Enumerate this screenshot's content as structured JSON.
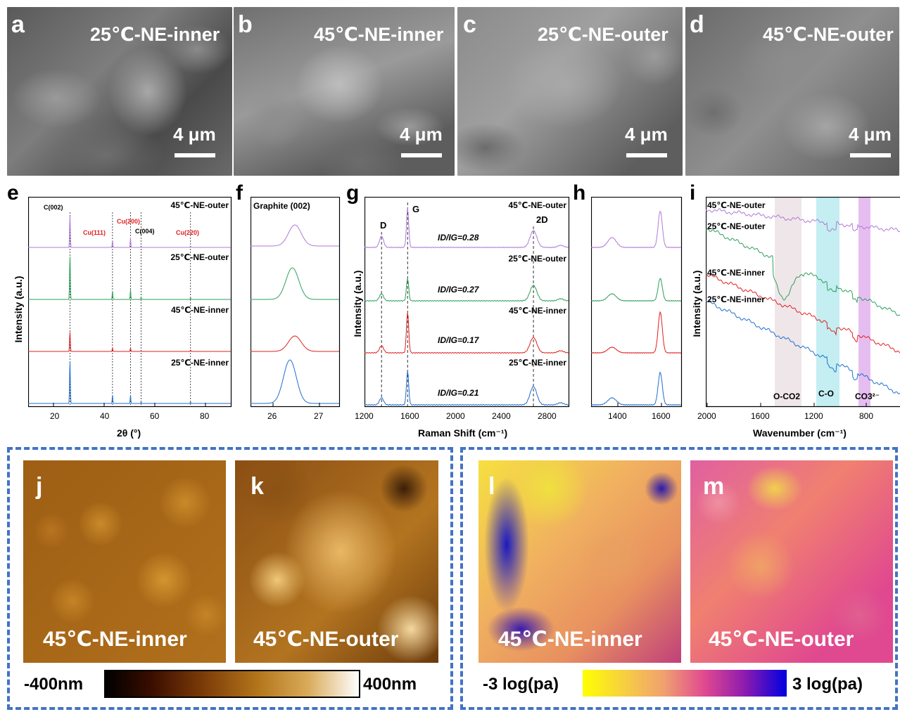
{
  "sem_panels": [
    {
      "letter": "a",
      "title": "25℃-NE-inner",
      "scale": "4 μm"
    },
    {
      "letter": "b",
      "title": "45℃-NE-inner",
      "scale": "4 μm"
    },
    {
      "letter": "c",
      "title": "25℃-NE-outer",
      "scale": "4 μm"
    },
    {
      "letter": "d",
      "title": "45℃-NE-outer",
      "scale": "4 μm"
    }
  ],
  "plots": {
    "e": {
      "letter": "e",
      "ylabel": "Intensity (a.u.)",
      "xlabel": "2θ (°)",
      "xticks": [
        "20",
        "40",
        "60",
        "80"
      ],
      "peak_labels": [
        {
          "text": "C(002)",
          "color": "#000000"
        },
        {
          "text": "Cu(111)",
          "color": "#e02020"
        },
        {
          "text": "Cu(200)",
          "color": "#e02020"
        },
        {
          "text": "C(004)",
          "color": "#000000"
        },
        {
          "text": "Cu(220)",
          "color": "#e02020"
        }
      ],
      "series_labels": [
        "45℃-NE-outer",
        "25℃-NE-outer",
        "45℃-NE-inner",
        "25℃-NE-inner"
      ]
    },
    "f": {
      "letter": "f",
      "title": "Graphite (002)",
      "xticks": [
        "26",
        "27"
      ]
    },
    "g": {
      "letter": "g",
      "ylabel": "Intensity (a.u.)",
      "xlabel": "Raman Shift (cm⁻¹)",
      "xticks": [
        "1200",
        "1600",
        "2000",
        "2400",
        "2800"
      ],
      "band_labels": [
        "D",
        "G",
        "2D"
      ],
      "series_labels": [
        "45℃-NE-outer",
        "25℃-NE-outer",
        "45℃-NE-inner",
        "25℃-NE-inner"
      ],
      "ratios": [
        "ID/IG=0.28",
        "ID/IG=0.27",
        "ID/IG=0.17",
        "ID/IG=0.21"
      ]
    },
    "h": {
      "letter": "h",
      "xticks": [
        "1400",
        "1600"
      ]
    },
    "i": {
      "letter": "i",
      "ylabel": "Intensity (a.u.)",
      "xlabel": "Wavenumber (cm⁻¹)",
      "xticks": [
        "2000",
        "1600",
        "1200",
        "800"
      ],
      "series_labels": [
        "45℃-NE-outer",
        "25℃-NE-outer",
        "45℃-NE-inner",
        "25℃-NE-inner"
      ],
      "band_labels": [
        "O-CO2",
        "C-O",
        "CO3²⁻"
      ]
    }
  },
  "series_colors": {
    "45℃-NE-outer": "#b07ad8",
    "25℃-NE-outer": "#2ca05a",
    "45℃-NE-inner": "#e02020",
    "25℃-NE-inner": "#1f6fd0"
  },
  "afm_maps": [
    {
      "letter": "j",
      "caption": "45℃-NE-inner"
    },
    {
      "letter": "k",
      "caption": "45℃-NE-outer"
    }
  ],
  "afm_colorbar": {
    "min_label": "-400nm",
    "max_label": "400nm"
  },
  "modulus_maps": [
    {
      "letter": "l",
      "caption": "45℃-NE-inner"
    },
    {
      "letter": "m",
      "caption": "45℃-NE-outer"
    }
  ],
  "modulus_colorbar": {
    "min_label": "-3 log(pa)",
    "max_label": "3 log(pa)"
  },
  "colors": {
    "dashed_border": "#4472c4"
  }
}
